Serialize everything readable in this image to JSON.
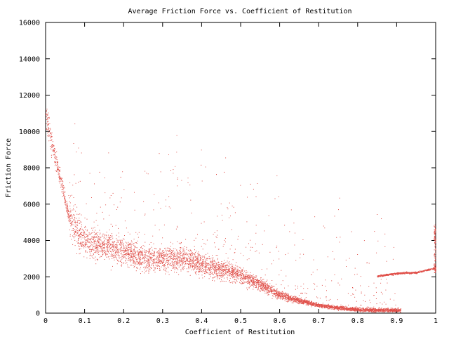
{
  "colors": {
    "points": "#e0504a",
    "axes": "#000000",
    "background": "#ffffff"
  },
  "chart_data": {
    "type": "scatter",
    "title": "Average Friction Force vs. Coefficient of Restitution",
    "xlabel": "Coefficient of Restitution",
    "ylabel": "Friction Force",
    "xlim": [
      0,
      1
    ],
    "ylim": [
      0,
      16000
    ],
    "grid": false,
    "legend": "none",
    "x_ticks": [
      "0",
      "0.1",
      "0.2",
      "0.3",
      "0.4",
      "0.5",
      "0.6",
      "0.7",
      "0.8",
      "0.9",
      "1"
    ],
    "y_ticks": [
      "0",
      "2000",
      "4000",
      "6000",
      "8000",
      "10000",
      "12000",
      "14000",
      "16000"
    ],
    "series": [
      {
        "points_note_removed": true,
        "trend_x": [
          0.0,
          0.01,
          0.02,
          0.03,
          0.04,
          0.05,
          0.06,
          0.08,
          0.1,
          0.12,
          0.15,
          0.2,
          0.25,
          0.3,
          0.35,
          0.4,
          0.45,
          0.5,
          0.55,
          0.6,
          0.65,
          0.7,
          0.75,
          0.8,
          0.85,
          0.9
        ],
        "trend_y": [
          11000,
          10000,
          9000,
          8000,
          7300,
          6200,
          5200,
          4500,
          4000,
          3900,
          3700,
          3400,
          3000,
          3000,
          3000,
          2700,
          2400,
          2100,
          1600,
          1000,
          700,
          450,
          300,
          220,
          180,
          180
        ],
        "upper_branch_x": [
          0.85,
          0.9,
          0.95,
          1.0
        ],
        "upper_branch_y": [
          2050,
          2200,
          2250,
          2500
        ]
      }
    ]
  }
}
